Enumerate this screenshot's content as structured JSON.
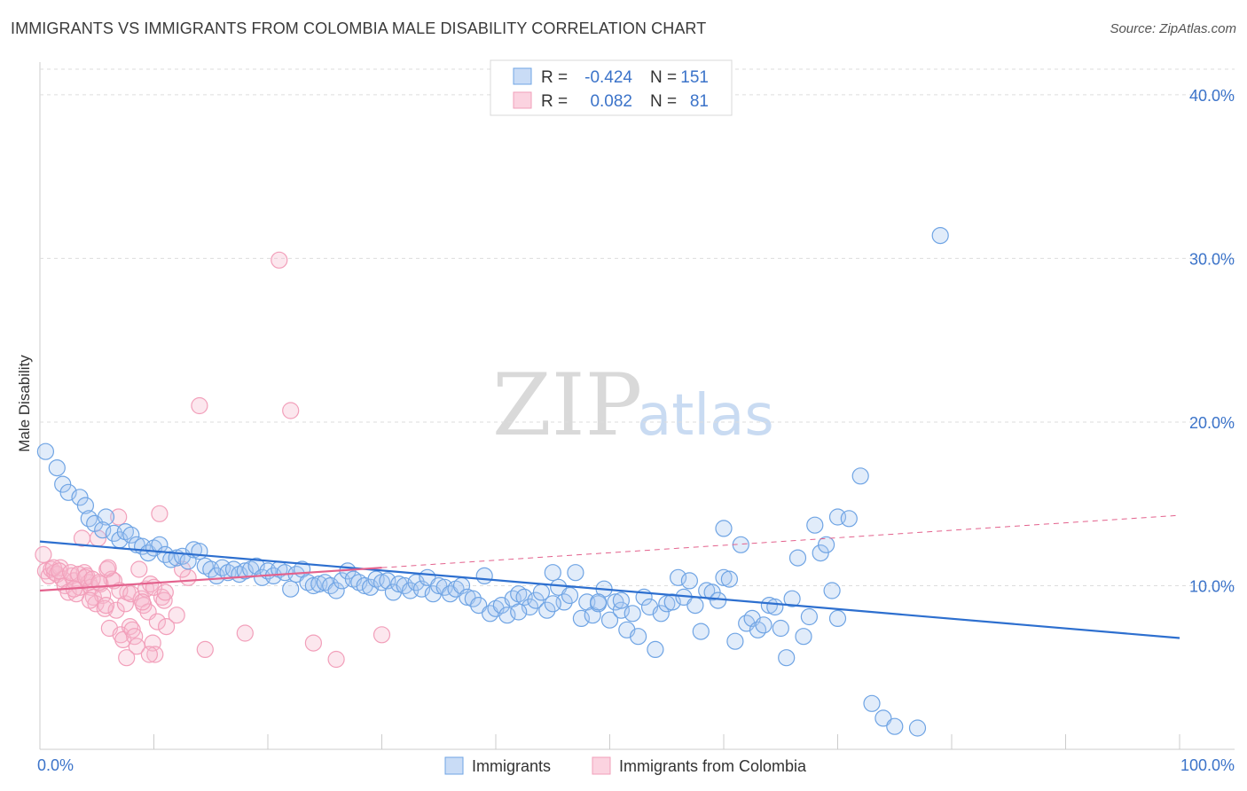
{
  "header": {
    "title": "IMMIGRANTS VS IMMIGRANTS FROM COLOMBIA MALE DISABILITY CORRELATION CHART",
    "source": "Source: ZipAtlas.com"
  },
  "watermark": {
    "zip": "ZIP",
    "atlas": "atlas"
  },
  "legend": {
    "rows": [
      {
        "r_label": "R =",
        "r_value": "-0.424",
        "n_label": "N =",
        "n_value": "151"
      },
      {
        "r_label": "R =",
        "r_value": "0.082",
        "n_label": "N =",
        "n_value": "81"
      }
    ]
  },
  "chart_data": {
    "type": "scatter",
    "ylabel": "Male Disability",
    "xlim": [
      0,
      100
    ],
    "ylim": [
      0,
      42
    ],
    "x_ticks": [
      "0.0%",
      "100.0%"
    ],
    "y_ticks": [
      {
        "value": 10,
        "label": "10.0%"
      },
      {
        "value": 20,
        "label": "20.0%"
      },
      {
        "value": 30,
        "label": "30.0%"
      },
      {
        "value": 40,
        "label": "40.0%"
      }
    ],
    "grid": "horizontal-dashed",
    "legend_position": "top-center",
    "series": [
      {
        "name": "Immigrants",
        "color": "#6fa4e4",
        "line_color": "#2d6fcf",
        "trend": {
          "x": [
            0,
            100
          ],
          "y": [
            12.7,
            6.8
          ]
        },
        "points": [
          [
            0.5,
            18.2
          ],
          [
            1.5,
            17.2
          ],
          [
            2,
            16.2
          ],
          [
            2.5,
            15.7
          ],
          [
            3.5,
            15.4
          ],
          [
            4,
            14.9
          ],
          [
            4.3,
            14.1
          ],
          [
            4.8,
            13.8
          ],
          [
            5.8,
            14.2
          ],
          [
            5.5,
            13.4
          ],
          [
            6.5,
            13.2
          ],
          [
            7,
            12.8
          ],
          [
            7.5,
            13.3
          ],
          [
            8,
            13.1
          ],
          [
            8.5,
            12.5
          ],
          [
            9,
            12.4
          ],
          [
            9.5,
            12.0
          ],
          [
            10,
            12.3
          ],
          [
            10.5,
            12.5
          ],
          [
            11,
            11.9
          ],
          [
            11.5,
            11.6
          ],
          [
            12,
            11.7
          ],
          [
            12.5,
            11.8
          ],
          [
            13,
            11.5
          ],
          [
            13.5,
            12.2
          ],
          [
            14,
            12.1
          ],
          [
            14.5,
            11.2
          ],
          [
            15,
            11.0
          ],
          [
            15.5,
            10.6
          ],
          [
            16,
            11.1
          ],
          [
            16.5,
            10.8
          ],
          [
            17,
            11.0
          ],
          [
            17.5,
            10.7
          ],
          [
            18,
            10.9
          ],
          [
            18.5,
            11.0
          ],
          [
            19,
            11.2
          ],
          [
            19.5,
            10.5
          ],
          [
            20,
            10.9
          ],
          [
            20.5,
            10.6
          ],
          [
            21,
            11.0
          ],
          [
            21.5,
            10.8
          ],
          [
            22,
            9.8
          ],
          [
            22.5,
            10.7
          ],
          [
            23,
            11.0
          ],
          [
            23.5,
            10.2
          ],
          [
            24,
            10.0
          ],
          [
            24.5,
            10.1
          ],
          [
            25,
            10.2
          ],
          [
            25.5,
            10.0
          ],
          [
            26,
            9.7
          ],
          [
            26.5,
            10.3
          ],
          [
            27,
            10.9
          ],
          [
            27.5,
            10.4
          ],
          [
            28,
            10.2
          ],
          [
            28.5,
            10.0
          ],
          [
            29,
            9.9
          ],
          [
            29.5,
            10.4
          ],
          [
            30,
            10.2
          ],
          [
            30.5,
            10.3
          ],
          [
            31,
            9.6
          ],
          [
            31.5,
            10.1
          ],
          [
            32,
            10.0
          ],
          [
            32.5,
            9.7
          ],
          [
            33,
            10.2
          ],
          [
            33.5,
            9.8
          ],
          [
            34,
            10.5
          ],
          [
            34.5,
            9.5
          ],
          [
            35,
            10.0
          ],
          [
            35.5,
            9.9
          ],
          [
            36,
            9.5
          ],
          [
            36.5,
            9.8
          ],
          [
            37,
            10.0
          ],
          [
            37.5,
            9.3
          ],
          [
            38,
            9.2
          ],
          [
            38.5,
            8.8
          ],
          [
            39,
            10.6
          ],
          [
            39.5,
            8.3
          ],
          [
            40,
            8.6
          ],
          [
            40.5,
            8.8
          ],
          [
            41,
            8.2
          ],
          [
            41.5,
            9.2
          ],
          [
            42,
            9.5
          ],
          [
            42.5,
            9.3
          ],
          [
            43,
            8.7
          ],
          [
            43.5,
            9.1
          ],
          [
            44,
            9.6
          ],
          [
            44.5,
            8.5
          ],
          [
            45,
            10.8
          ],
          [
            45.5,
            9.9
          ],
          [
            46,
            9.0
          ],
          [
            46.5,
            9.4
          ],
          [
            47,
            10.8
          ],
          [
            47.5,
            8.0
          ],
          [
            48,
            9.0
          ],
          [
            48.5,
            8.2
          ],
          [
            49,
            8.9
          ],
          [
            49.5,
            9.8
          ],
          [
            50,
            7.9
          ],
          [
            50.5,
            9.0
          ],
          [
            51,
            8.5
          ],
          [
            51.5,
            7.3
          ],
          [
            52,
            8.3
          ],
          [
            52.5,
            6.9
          ],
          [
            53,
            9.3
          ],
          [
            53.5,
            8.7
          ],
          [
            54,
            6.1
          ],
          [
            54.5,
            8.3
          ],
          [
            55,
            8.9
          ],
          [
            55.5,
            9.0
          ],
          [
            56,
            10.5
          ],
          [
            56.5,
            9.3
          ],
          [
            57,
            10.3
          ],
          [
            57.5,
            8.8
          ],
          [
            58,
            7.2
          ],
          [
            58.5,
            9.7
          ],
          [
            59,
            9.6
          ],
          [
            59.5,
            9.1
          ],
          [
            60,
            10.5
          ],
          [
            60.5,
            10.4
          ],
          [
            61,
            6.6
          ],
          [
            61.5,
            12.5
          ],
          [
            62,
            7.7
          ],
          [
            62.5,
            8.0
          ],
          [
            63,
            7.3
          ],
          [
            63.5,
            7.6
          ],
          [
            64,
            8.8
          ],
          [
            64.5,
            8.7
          ],
          [
            65,
            7.4
          ],
          [
            65.5,
            5.6
          ],
          [
            66,
            9.2
          ],
          [
            66.5,
            11.7
          ],
          [
            67,
            6.9
          ],
          [
            67.5,
            8.1
          ],
          [
            68,
            13.7
          ],
          [
            68.5,
            12.0
          ],
          [
            69,
            12.5
          ],
          [
            69.5,
            9.7
          ],
          [
            70,
            14.2
          ],
          [
            71,
            14.1
          ],
          [
            72,
            16.7
          ],
          [
            73,
            2.8
          ],
          [
            74,
            1.9
          ],
          [
            75,
            1.4
          ],
          [
            77,
            1.3
          ],
          [
            79,
            31.4
          ],
          [
            60,
            13.5
          ],
          [
            51,
            9.1
          ],
          [
            49,
            9.0
          ],
          [
            45,
            8.9
          ],
          [
            42,
            8.4
          ],
          [
            70,
            8.0
          ]
        ]
      },
      {
        "name": "Immigrants from Colombia",
        "color": "#f29fba",
        "line_color": "#e3628d",
        "trend_solid": {
          "x": [
            0,
            30
          ],
          "y": [
            9.7,
            11.1
          ]
        },
        "trend_dashed": {
          "x": [
            30,
            100
          ],
          "y": [
            11.1,
            14.3
          ]
        },
        "points": [
          [
            0.3,
            11.9
          ],
          [
            0.5,
            10.9
          ],
          [
            0.8,
            10.6
          ],
          [
            1,
            11.0
          ],
          [
            1.3,
            10.8
          ],
          [
            1.5,
            10.7
          ],
          [
            1.8,
            11.1
          ],
          [
            2,
            10.4
          ],
          [
            2.2,
            10.0
          ],
          [
            2.5,
            9.6
          ],
          [
            2.8,
            10.6
          ],
          [
            3,
            10.3
          ],
          [
            3.2,
            9.5
          ],
          [
            3.5,
            9.9
          ],
          [
            3.7,
            12.9
          ],
          [
            3.9,
            10.8
          ],
          [
            4.1,
            10.6
          ],
          [
            4.3,
            10.2
          ],
          [
            4.5,
            9.9
          ],
          [
            4.7,
            9.3
          ],
          [
            4.9,
            8.9
          ],
          [
            5.1,
            12.9
          ],
          [
            5.3,
            10.1
          ],
          [
            5.5,
            9.4
          ],
          [
            5.7,
            8.6
          ],
          [
            5.9,
            11.0
          ],
          [
            6.1,
            7.4
          ],
          [
            6.3,
            10.4
          ],
          [
            6.5,
            10.3
          ],
          [
            6.7,
            8.5
          ],
          [
            6.9,
            14.2
          ],
          [
            7.1,
            7.0
          ],
          [
            7.3,
            6.7
          ],
          [
            7.5,
            8.9
          ],
          [
            7.7,
            9.6
          ],
          [
            7.9,
            7.5
          ],
          [
            8.1,
            7.3
          ],
          [
            8.3,
            6.9
          ],
          [
            8.5,
            6.3
          ],
          [
            8.7,
            11.0
          ],
          [
            8.9,
            9.2
          ],
          [
            9.1,
            8.8
          ],
          [
            9.3,
            9.8
          ],
          [
            9.5,
            8.4
          ],
          [
            9.7,
            10.1
          ],
          [
            9.9,
            6.5
          ],
          [
            10.1,
            5.8
          ],
          [
            10.3,
            7.8
          ],
          [
            10.5,
            14.4
          ],
          [
            10.7,
            9.3
          ],
          [
            10.9,
            9.1
          ],
          [
            11.1,
            7.5
          ],
          [
            12,
            8.2
          ],
          [
            13,
            10.5
          ],
          [
            14,
            21.0
          ],
          [
            14.5,
            6.1
          ],
          [
            18,
            7.1
          ],
          [
            21,
            29.9
          ],
          [
            22,
            20.7
          ],
          [
            24,
            6.5
          ],
          [
            26,
            5.5
          ],
          [
            30,
            7.0
          ],
          [
            1.2,
            11.1
          ],
          [
            1.7,
            10.9
          ],
          [
            2.7,
            10.8
          ],
          [
            3.4,
            10.7
          ],
          [
            4.0,
            10.5
          ],
          [
            4.6,
            10.4
          ],
          [
            5.2,
            10.2
          ],
          [
            6.0,
            11.1
          ],
          [
            7.0,
            9.7
          ],
          [
            8.0,
            9.5
          ],
          [
            9.0,
            9.0
          ],
          [
            10.0,
            9.9
          ],
          [
            11.0,
            9.6
          ],
          [
            12.5,
            11.0
          ],
          [
            3.0,
            9.8
          ],
          [
            4.4,
            9.1
          ],
          [
            5.8,
            8.8
          ],
          [
            7.6,
            5.6
          ],
          [
            9.6,
            5.8
          ]
        ]
      }
    ]
  },
  "bottom_legend": {
    "items": [
      {
        "label": "Immigrants",
        "color": "#6fa4e4"
      },
      {
        "label": "Immigrants from Colombia",
        "color": "#f29fba"
      }
    ]
  }
}
